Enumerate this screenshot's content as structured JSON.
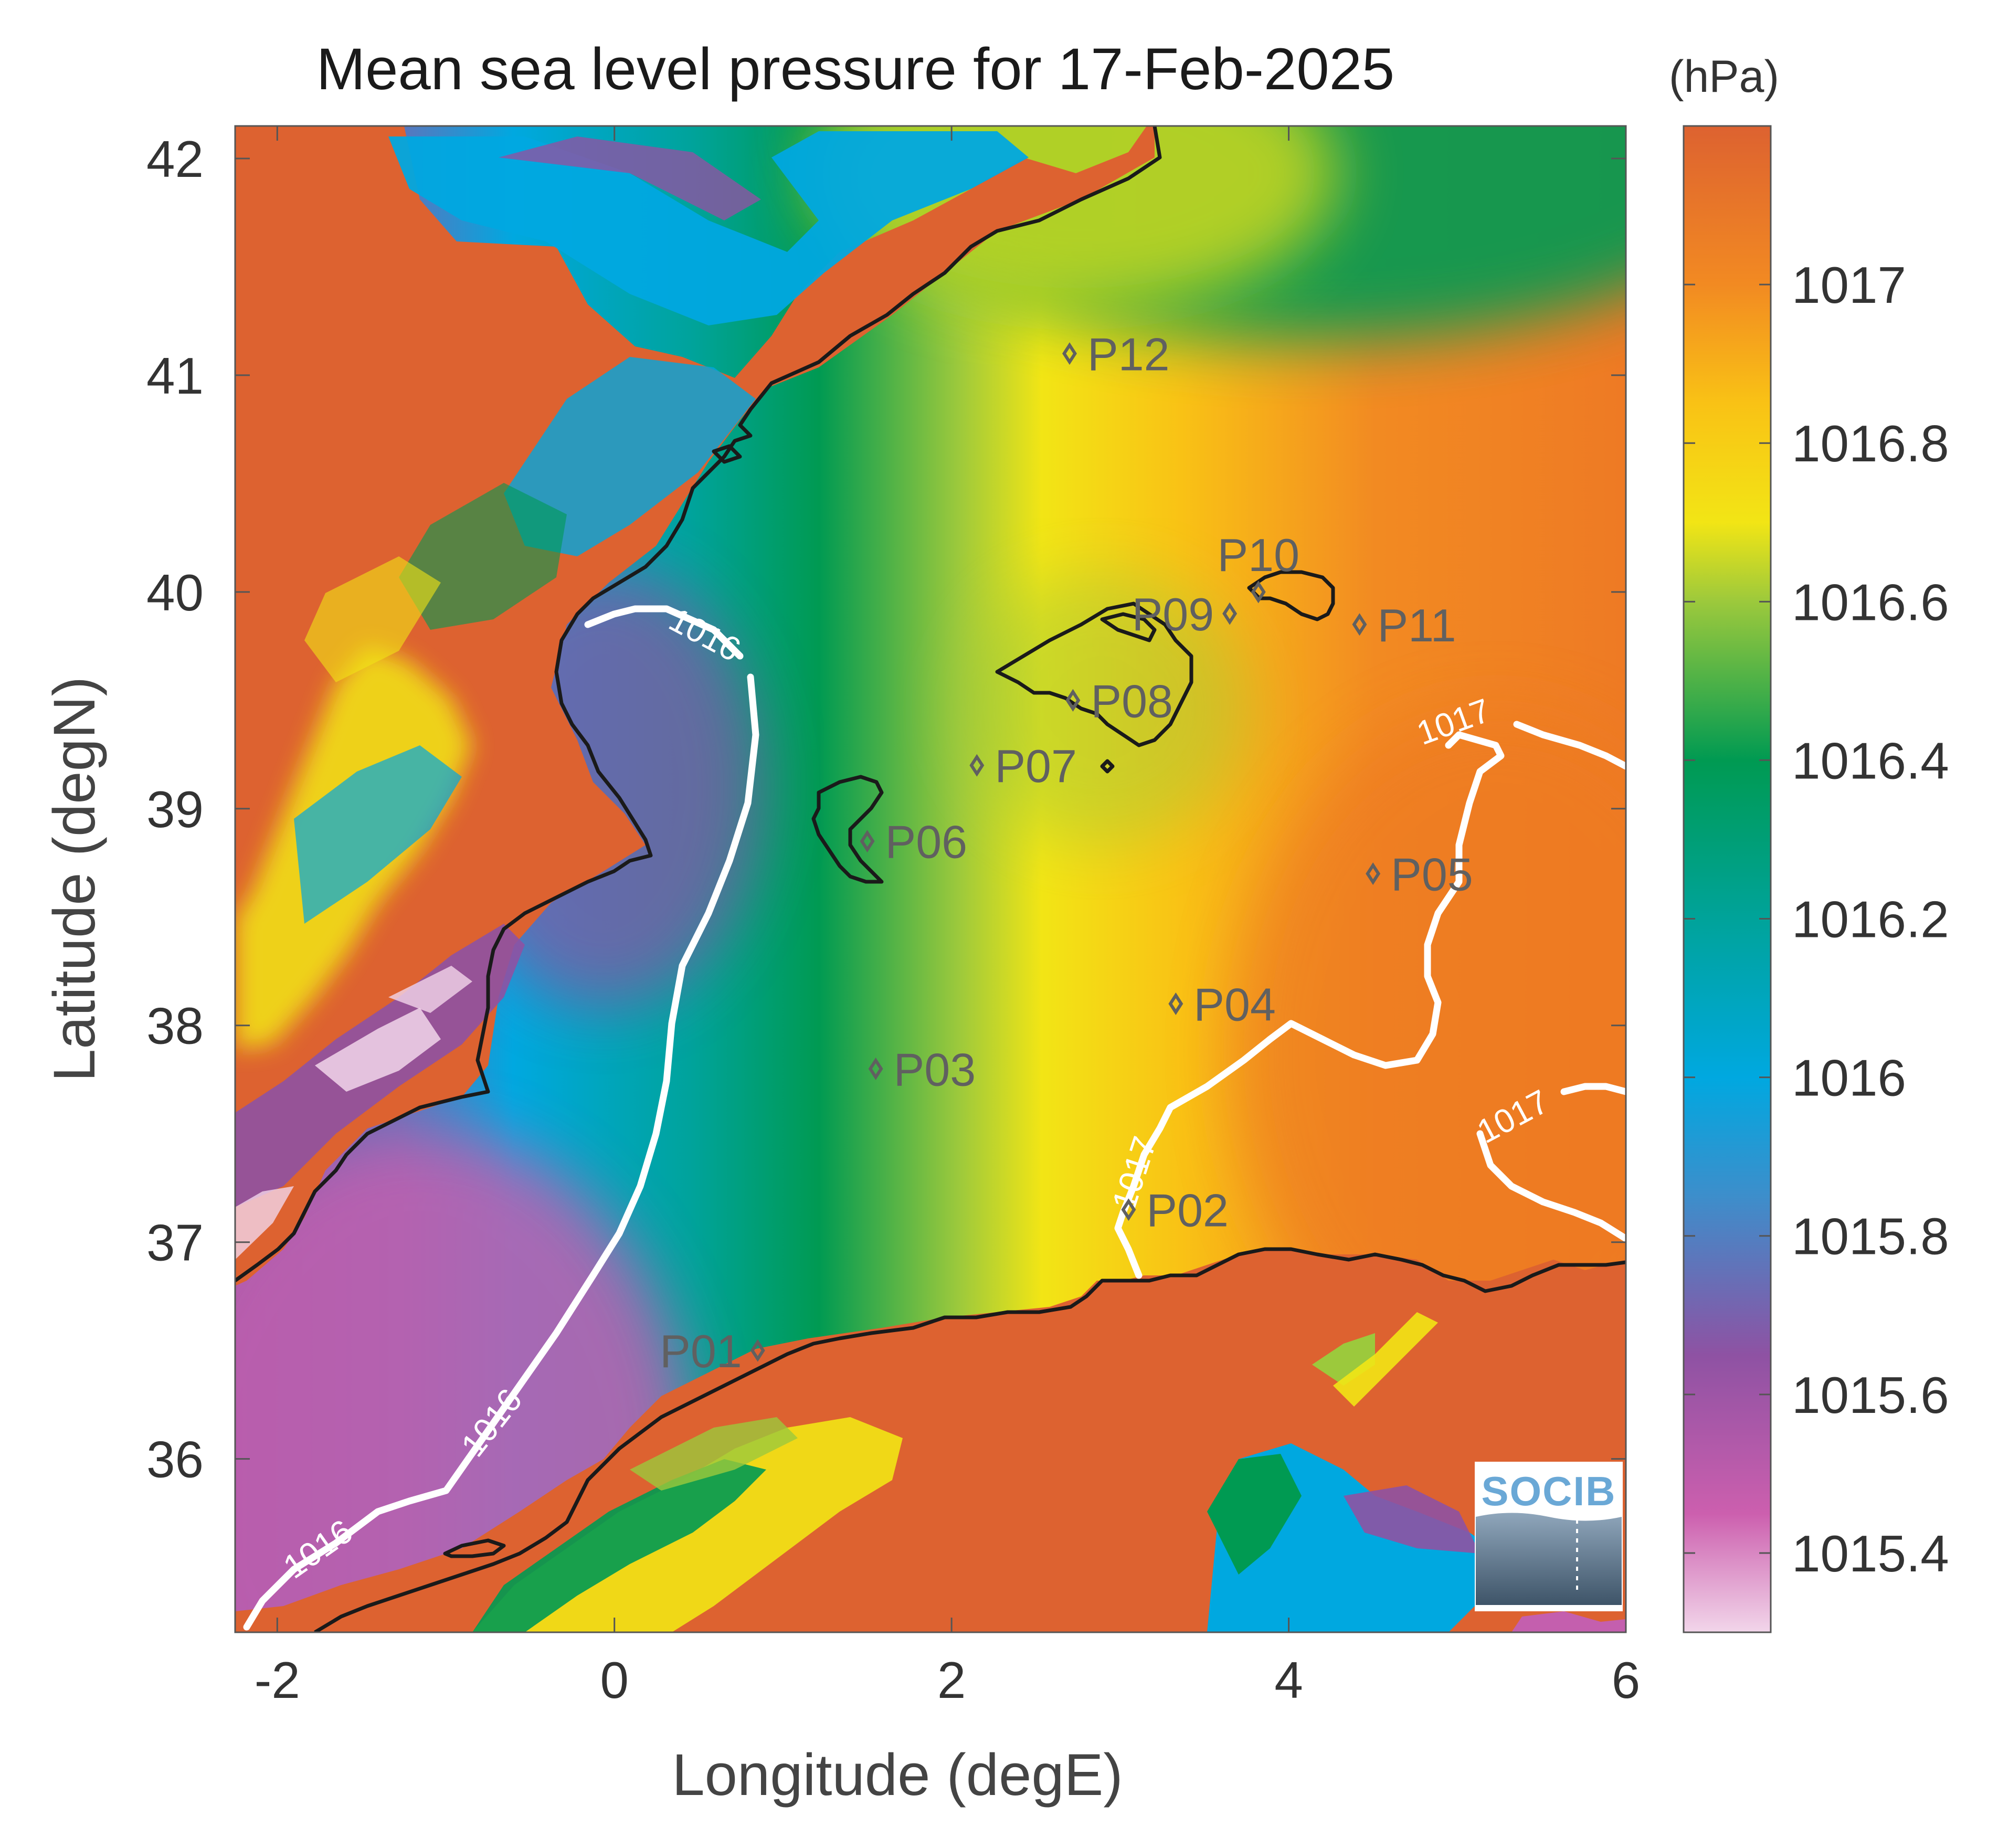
{
  "title": "Mean sea level pressure for 17-Feb-2025",
  "unit": "(hPa)",
  "logo_text": "SOCIB",
  "x_axis": {
    "label": "Longitude (degE)",
    "range": [
      -2.25,
      6.0
    ],
    "ticks": [
      -2,
      0,
      2,
      4,
      6
    ],
    "tick_labels": [
      "-2",
      "0",
      "2",
      "4",
      "6"
    ]
  },
  "y_axis": {
    "label": "Latitude (degN)",
    "range": [
      35.2,
      42.15
    ],
    "ticks": [
      36,
      37,
      38,
      39,
      40,
      41,
      42
    ],
    "tick_labels": [
      "36",
      "37",
      "38",
      "39",
      "40",
      "41",
      "42"
    ]
  },
  "colorbar": {
    "range": [
      1015.3,
      1017.2
    ],
    "ticks": [
      1015.4,
      1015.6,
      1015.8,
      1016,
      1016.2,
      1016.4,
      1016.6,
      1016.8,
      1017
    ],
    "tick_labels": [
      "1015.4",
      "1015.6",
      "1015.8",
      "1016",
      "1016.2",
      "1016.4",
      "1016.6",
      "1016.8",
      "1017"
    ],
    "stops": [
      {
        "value": 1015.3,
        "color": "#f2d6ea"
      },
      {
        "value": 1015.45,
        "color": "#cc5fae"
      },
      {
        "value": 1015.65,
        "color": "#8e52a3"
      },
      {
        "value": 1015.85,
        "color": "#3d8ecb"
      },
      {
        "value": 1016.0,
        "color": "#00a8e0"
      },
      {
        "value": 1016.2,
        "color": "#00a39a"
      },
      {
        "value": 1016.4,
        "color": "#009a52"
      },
      {
        "value": 1016.6,
        "color": "#9cc93c"
      },
      {
        "value": 1016.7,
        "color": "#f2e515"
      },
      {
        "value": 1016.85,
        "color": "#f9c215"
      },
      {
        "value": 1017.0,
        "color": "#f28a22"
      },
      {
        "value": 1017.2,
        "color": "#dd6230"
      }
    ]
  },
  "contour_labels": [
    "1016",
    "1016",
    "1016",
    "1017",
    "1017",
    "1017"
  ],
  "stations": [
    {
      "name": "P01",
      "lon": 0.85,
      "lat": 36.5,
      "label_side": "left"
    },
    {
      "name": "P02",
      "lon": 3.05,
      "lat": 37.15,
      "label_side": "right"
    },
    {
      "name": "P03",
      "lon": 1.55,
      "lat": 37.8,
      "label_side": "right"
    },
    {
      "name": "P04",
      "lon": 3.33,
      "lat": 38.1,
      "label_side": "right"
    },
    {
      "name": "P05",
      "lon": 4.5,
      "lat": 38.7,
      "label_side": "right"
    },
    {
      "name": "P06",
      "lon": 1.5,
      "lat": 38.85,
      "label_side": "right"
    },
    {
      "name": "P07",
      "lon": 2.15,
      "lat": 39.2,
      "label_side": "right"
    },
    {
      "name": "P08",
      "lon": 2.72,
      "lat": 39.5,
      "label_side": "right"
    },
    {
      "name": "P09",
      "lon": 3.65,
      "lat": 39.9,
      "label_side": "left"
    },
    {
      "name": "P10",
      "lon": 3.82,
      "lat": 40.0,
      "label_side": "top"
    },
    {
      "name": "P11",
      "lon": 4.42,
      "lat": 39.85,
      "label_side": "right"
    },
    {
      "name": "P12",
      "lon": 2.7,
      "lat": 41.1,
      "label_side": "right"
    }
  ]
}
